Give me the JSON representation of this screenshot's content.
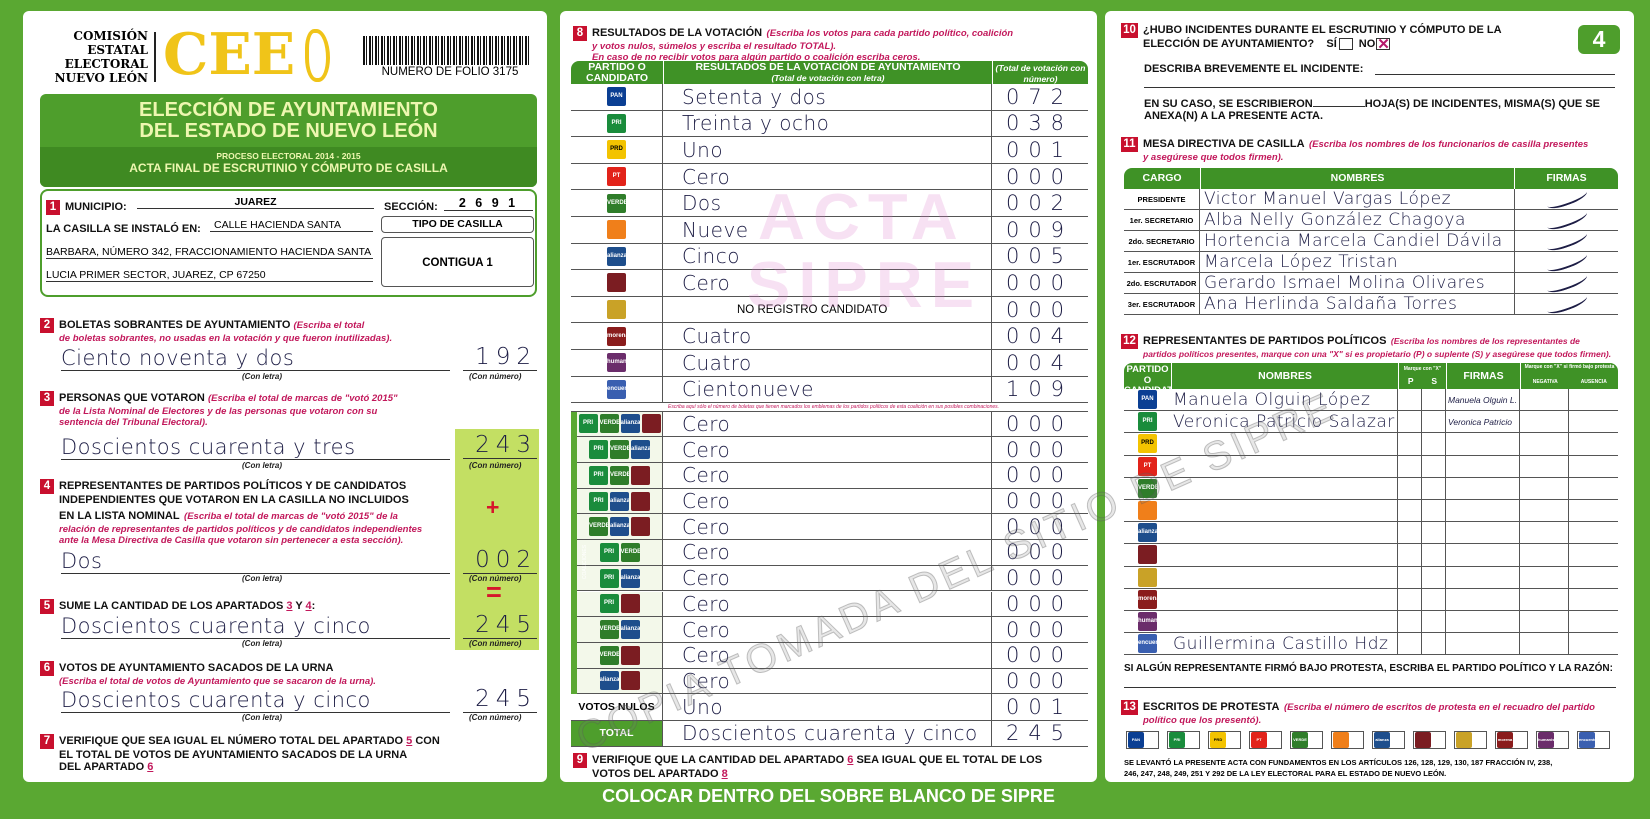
{
  "header": {
    "org": [
      "COMISIÓN",
      "ESTATAL",
      "ELECTORAL",
      "NUEVO LEÓN"
    ],
    "logo": "CEE",
    "folio": "NUMERO DE FOLIO 3175",
    "page_number": "4"
  },
  "title": {
    "line1": "ELECCIÓN DE AYUNTAMIENTO",
    "line2": "DEL ESTADO DE NUEVO LEÓN",
    "process": "PROCESO ELECTORAL 2014 - 2015",
    "acta": "ACTA FINAL DE ESCRUTINIO Y CÓMPUTO DE CASILLA"
  },
  "s1": {
    "n": "1",
    "municipio_label": "MUNICIPIO:",
    "municipio": "JUAREZ",
    "seccion_label": "SECCIÓN:",
    "seccion": "2 6 9 1",
    "casilla_label": "LA CASILLA SE INSTALÓ EN:",
    "address1": "CALLE HACIENDA SANTA",
    "address2": "BARBARA, NÚMERO 342, FRACCIONAMIENTO HACIENDA SANTA",
    "address3": "LUCIA PRIMER SECTOR, JUAREZ, CP 67250",
    "tipo_label": "TIPO DE CASILLA",
    "tipo": "CONTIGUA 1"
  },
  "labels": {
    "con_letra": "(Con letra)",
    "con_numero": "(Con número)",
    "plus": "+",
    "equals": "="
  },
  "s2": {
    "n": "2",
    "title": "BOLETAS SOBRANTES DE AYUNTAMIENTO",
    "ins1": "(Escriba el total",
    "ins2": "de boletas sobrantes, no usadas en la votación y que fueron inutilizadas).",
    "letra": "Ciento noventa y dos",
    "numero": "192"
  },
  "s3": {
    "n": "3",
    "title": "PERSONAS QUE VOTARON",
    "ins1": "(Escriba el total de marcas de \"votó 2015\"",
    "ins2": "de la Lista Nominal de Electores y de las personas que votaron con su",
    "ins3": "sentencia del Tribunal Electoral).",
    "letra": "Doscientos cuarenta y tres",
    "numero": "243"
  },
  "s4": {
    "n": "4",
    "title1": "REPRESENTANTES DE PARTIDOS POLÍTICOS Y DE CANDIDATOS",
    "title2": "INDEPENDIENTES QUE VOTARON EN LA CASILLA NO INCLUIDOS",
    "title3": "EN LA LISTA NOMINAL",
    "ins1": "(Escriba el total de marcas de \"votó 2015\" de la",
    "ins2": "relación de representantes de partidos políticos y de candidatos independientes",
    "ins3": "ante la Mesa Directiva de Casilla que votaron sin pertenecer a esta sección).",
    "letra": "Dos",
    "numero": "002"
  },
  "s5": {
    "n": "5",
    "title": "SUME LA CANTIDAD DE LOS APARTADOS",
    "a": "3",
    "y": "Y",
    "b": "4",
    "colon": ":",
    "letra": "Doscientos cuarenta y cinco",
    "numero": "245"
  },
  "s6": {
    "n": "6",
    "title": "VOTOS DE AYUNTAMIENTO SACADOS DE LA URNA",
    "ins": "(Escriba el total de votos de Ayuntamiento que se sacaron de la urna).",
    "letra": "Doscientos cuarenta y cinco",
    "numero": "245"
  },
  "s7": {
    "n": "7",
    "t1": "VERIFIQUE QUE SEA IGUAL EL NÚMERO TOTAL DEL APARTADO",
    "a": "5",
    "t2": "CON",
    "t3": "EL TOTAL DE VOTOS DE AYUNTAMIENTO SACADOS DE LA URNA",
    "t4": "DEL APARTADO",
    "b": "6"
  },
  "s8": {
    "n": "8",
    "title": "RESULTADOS DE LA VOTACIÓN",
    "ins1": "(Escriba los votos para cada partido político, coalición",
    "ins2": "y votos nulos, súmelos y escriba el resultado TOTAL).",
    "ins3": "En caso de no recibir votos para algún partido o coalición escriba ceros.",
    "col1": "PARTIDO O CANDIDATO",
    "col2": "RESULTADOS DE LA VOTACIÓN DE AYUNTAMIENTO",
    "col2sub": "(Total de votación con letra)",
    "col3": "(Total de votación con número)",
    "coalition_note": "Escriba aquí sólo el número de boletas que tienen marcados los emblemas de los partidos políticos de esta coalición en sus posibles combinaciones.",
    "coalition_side": "COALICIONES",
    "rows": [
      {
        "party": "PAN",
        "letra": "Setenta y dos",
        "numero": "072"
      },
      {
        "party": "PRI",
        "letra": "Treinta y ocho",
        "numero": "038"
      },
      {
        "party": "PRD",
        "letra": "Uno",
        "numero": "001"
      },
      {
        "party": "PT",
        "letra": "Cero",
        "numero": "000"
      },
      {
        "party": "VERDE",
        "letra": "Dos",
        "numero": "002"
      },
      {
        "party": "MC",
        "letra": "Nueve",
        "numero": "009"
      },
      {
        "party": "NA",
        "letra": "Cinco",
        "numero": "005"
      },
      {
        "party": "P8",
        "letra": "Cero",
        "numero": "000"
      },
      {
        "party": "P9",
        "letra": "NO REGISTRO CANDIDATO",
        "numero": "000"
      },
      {
        "party": "MORENA",
        "letra": "Cuatro",
        "numero": "004"
      },
      {
        "party": "HUM",
        "letra": "Cuatro",
        "numero": "004"
      },
      {
        "party": "PES",
        "letra": "Cientonueve",
        "numero": "109"
      }
    ],
    "coalitions": [
      {
        "parties": [
          "PRI",
          "VERDE",
          "NA",
          "P8"
        ],
        "letra": "Cero",
        "numero": "000"
      },
      {
        "parties": [
          "PRI",
          "VERDE",
          "NA"
        ],
        "letra": "Cero",
        "numero": "000"
      },
      {
        "parties": [
          "PRI",
          "VERDE",
          "P8"
        ],
        "letra": "Cero",
        "numero": "000"
      },
      {
        "parties": [
          "PRI",
          "NA",
          "P8"
        ],
        "letra": "Cero",
        "numero": "000"
      },
      {
        "parties": [
          "VERDE",
          "NA",
          "P8"
        ],
        "letra": "Cero",
        "numero": "000"
      },
      {
        "parties": [
          "PRI",
          "VERDE"
        ],
        "letra": "Cero",
        "numero": "000"
      },
      {
        "parties": [
          "PRI",
          "NA"
        ],
        "letra": "Cero",
        "numero": "000"
      },
      {
        "parties": [
          "PRI",
          "P8"
        ],
        "letra": "Cero",
        "numero": "000"
      },
      {
        "parties": [
          "VERDE",
          "NA"
        ],
        "letra": "Cero",
        "numero": "000"
      },
      {
        "parties": [
          "VERDE",
          "P8"
        ],
        "letra": "Cero",
        "numero": "000"
      },
      {
        "parties": [
          "NA",
          "P8"
        ],
        "letra": "Cero",
        "numero": "000"
      }
    ],
    "nulos": {
      "label": "VOTOS NULOS",
      "letra": "Uno",
      "numero": "001"
    },
    "total": {
      "label": "TOTAL",
      "letra": "Doscientos cuarenta y cinco",
      "numero": "245"
    }
  },
  "s9": {
    "n": "9",
    "t1": "VERIFIQUE QUE LA CANTIDAD DEL APARTADO",
    "a": "6",
    "t2": "SEA IGUAL QUE EL TOTAL DE LOS",
    "t3": "VOTOS DEL APARTADO",
    "b": "8"
  },
  "footer_strip": "COLOCAR DENTRO DEL SOBRE BLANCO DE SIPRE",
  "s10": {
    "n": "10",
    "t1": "¿HUBO INCIDENTES DURANTE EL ESCRUTINIO Y CÓMPUTO DE LA",
    "t2": "ELECCIÓN DE AYUNTAMIENTO?",
    "si": "SÍ",
    "no": "NO",
    "si_checked": false,
    "no_checked": true,
    "describa": "DESCRIBA BREVEMENTE EL INCIDENTE:",
    "caso1": "EN SU CASO, SE ESCRIBIERON",
    "caso2": "HOJA(S) DE INCIDENTES, MISMA(S) QUE SE",
    "caso3": "ANEXA(N) A LA PRESENTE ACTA."
  },
  "s11": {
    "n": "11",
    "title": "MESA DIRECTIVA DE CASILLA",
    "ins1": "(Escriba los nombres de los funcionarios de casilla presentes",
    "ins2": "y asegúrese que todos firmen).",
    "col1": "CARGO",
    "col2": "NOMBRES",
    "col3": "FIRMAS",
    "rows": [
      {
        "cargo": "PRESIDENTE",
        "nombre": "Victor Manuel Vargas López"
      },
      {
        "cargo": "1er. SECRETARIO",
        "nombre": "Alba Nelly González Chagoya"
      },
      {
        "cargo": "2do. SECRETARIO",
        "nombre": "Hortencia Marcela Candiel Dávila"
      },
      {
        "cargo": "1er. ESCRUTADOR",
        "nombre": "Marcela López Tristan"
      },
      {
        "cargo": "2do. ESCRUTADOR",
        "nombre": "Gerardo Ismael Molina Olivares"
      },
      {
        "cargo": "3er. ESCRUTADOR",
        "nombre": "Ana Herlinda Saldaña Torres"
      }
    ]
  },
  "s12": {
    "n": "12",
    "title": "REPRESENTANTES DE PARTIDOS POLÍTICOS",
    "ins1": "(Escriba los nombres de los representantes de",
    "ins2": "partidos políticos presentes, marque con una \"X\" si es propietario (P) o suplente (S) y asegúrese que todos firmen).",
    "col1": "PARTIDO O CANDIDATO",
    "col2": "NOMBRES",
    "col3": "Marque con \"X\"",
    "p": "P",
    "s": "S",
    "col4": "FIRMAS",
    "col5": "Marque con \"X\" si firmó bajo protesta",
    "col5a": "NEGATIVA",
    "col5b": "AUSENCIA",
    "rows": [
      {
        "party": "PAN",
        "nombre": "Manuela Olguin López",
        "firma": "Manuela Olguin L."
      },
      {
        "party": "PRI",
        "nombre": "Veronica Patricio Salazar",
        "firma": "Veronica Patricio"
      },
      {
        "party": "PRD",
        "nombre": "",
        "firma": ""
      },
      {
        "party": "PT",
        "nombre": "",
        "firma": ""
      },
      {
        "party": "VERDE",
        "nombre": "",
        "firma": ""
      },
      {
        "party": "MC",
        "nombre": "",
        "firma": ""
      },
      {
        "party": "NA",
        "nombre": "",
        "firma": ""
      },
      {
        "party": "P8",
        "nombre": "",
        "firma": ""
      },
      {
        "party": "P9",
        "nombre": "",
        "firma": ""
      },
      {
        "party": "MORENA",
        "nombre": "",
        "firma": ""
      },
      {
        "party": "HUM",
        "nombre": "",
        "firma": ""
      },
      {
        "party": "PES",
        "nombre": "Guillermina Castillo Hdz",
        "firma": ""
      }
    ],
    "protesta": "SI ALGÚN REPRESENTANTE FIRMÓ BAJO PROTESTA, ESCRIBA EL PARTIDO POLÍTICO Y LA RAZÓN:"
  },
  "s13": {
    "n": "13",
    "title": "ESCRITOS DE PROTESTA",
    "ins1": "(Escriba el número de escritos de protesta en el recuadro del partido",
    "ins2": "político que los presentó).",
    "parties": [
      "PAN",
      "PRI",
      "PRD",
      "PT",
      "VERDE",
      "MC",
      "NA",
      "P8",
      "P9",
      "MORENA",
      "HUM",
      "PES"
    ],
    "legal1": "SE LEVANTÓ LA PRESENTE ACTA CON FUNDAMENTOS EN LOS ARTÍCULOS 126, 128, 129, 130, 187 FRACCIÓN IV, 238,",
    "legal2": "246, 247, 248, 249, 251 Y 292 DE LA LEY ELECTORAL PARA EL ESTADO DE NUEVO LEÓN."
  },
  "parties": {
    "PAN": {
      "abbr": "PAN",
      "color": "#0b3f93"
    },
    "PRI": {
      "abbr": "PRI",
      "color": "#1a8c3c"
    },
    "PRD": {
      "abbr": "PRD",
      "color": "#f3c300"
    },
    "PT": {
      "abbr": "PT",
      "color": "#e2231a"
    },
    "VERDE": {
      "abbr": "VERDE",
      "color": "#2f7d2a"
    },
    "MC": {
      "abbr": "",
      "color": "#f07f1a"
    },
    "NA": {
      "abbr": "alianza",
      "color": "#1e4e8c"
    },
    "P8": {
      "abbr": "",
      "color": "#7b1d22"
    },
    "P9": {
      "abbr": "",
      "color": "#c9a227"
    },
    "MORENA": {
      "abbr": "morena",
      "color": "#8a1c1c"
    },
    "HUM": {
      "abbr": "humanista",
      "color": "#6b2d6b"
    },
    "PES": {
      "abbr": "encuentro",
      "color": "#3a5fb0"
    }
  },
  "watermark": {
    "acta": "ACTA",
    "sipre": "SIPRE",
    "diagonal": "COPIA TOMADA DEL SITIO DE SIPRE"
  }
}
